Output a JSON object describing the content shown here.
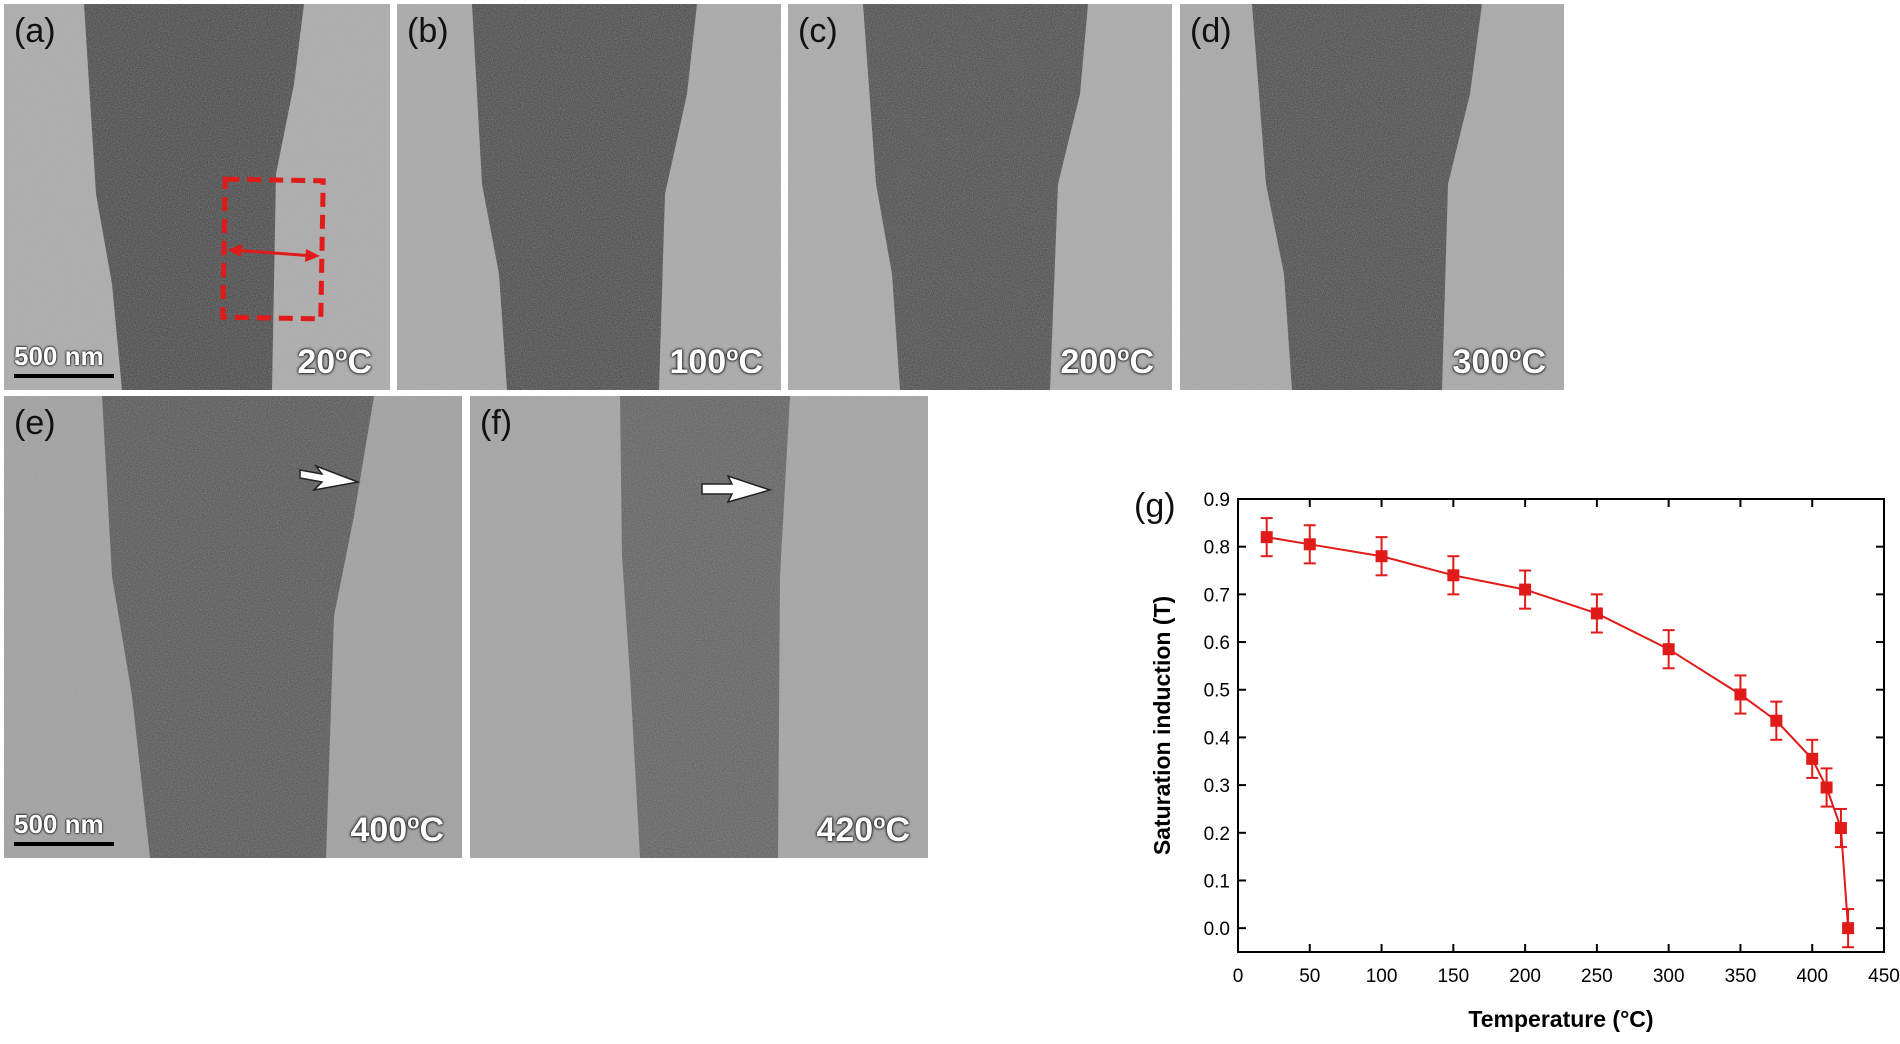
{
  "panels": [
    {
      "label": "(a)",
      "temperature": "20",
      "unit": "C",
      "scale": "500 nm"
    },
    {
      "label": "(b)",
      "temperature": "100",
      "unit": "C"
    },
    {
      "label": "(c)",
      "temperature": "200",
      "unit": "C"
    },
    {
      "label": "(d)",
      "temperature": "300",
      "unit": "C"
    },
    {
      "label": "(e)",
      "temperature": "400",
      "unit": "C",
      "scale": "500 nm"
    },
    {
      "label": "(f)",
      "temperature": "420",
      "unit": "C"
    }
  ],
  "degree_symbol": "o",
  "chart_label": "(g)",
  "chart_data": {
    "type": "line",
    "xlabel": "Temperature (°C)",
    "ylabel": "Saturation induction (T)",
    "xlim": [
      0,
      450
    ],
    "ylim": [
      -0.05,
      0.9
    ],
    "xticks": [
      0,
      50,
      100,
      150,
      200,
      250,
      300,
      350,
      400,
      450
    ],
    "yticks": [
      0.0,
      0.1,
      0.2,
      0.3,
      0.4,
      0.5,
      0.6,
      0.7,
      0.8,
      0.9
    ],
    "grid": false,
    "color": "#e11a1a",
    "marker": "square",
    "series": [
      {
        "x": [
          20,
          50,
          100,
          150,
          200,
          250,
          300,
          350,
          375,
          400,
          410,
          420,
          425
        ],
        "y": [
          0.82,
          0.805,
          0.78,
          0.74,
          0.71,
          0.66,
          0.585,
          0.49,
          0.435,
          0.355,
          0.295,
          0.21,
          0.0
        ],
        "err": [
          0.04,
          0.04,
          0.04,
          0.04,
          0.04,
          0.04,
          0.04,
          0.04,
          0.04,
          0.04,
          0.04,
          0.04,
          0.04
        ]
      }
    ]
  }
}
